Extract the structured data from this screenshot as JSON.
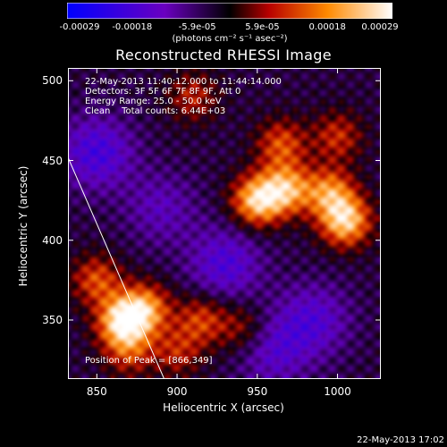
{
  "colorbar": {
    "ticks": [
      "-0.00029",
      "-0.00018",
      "-5.9e-05",
      "5.9e-05",
      "0.00018",
      "0.00029"
    ],
    "unit": "(photons cm⁻² s⁻¹ asec⁻²)",
    "colors": [
      "#0000ff",
      "#6a00c0",
      "#000000",
      "#b80000",
      "#ff8a00",
      "#ffffff"
    ]
  },
  "header": {
    "title": "Reconstructed RHESSI Image",
    "info_lines": [
      "22-May-2013 11:40:12.000 to 11:44:14.000",
      "Detectors: 3F 5F 6F 7F 8F 9F, Att 0",
      "Energy Range: 25.0 - 50.0 keV",
      "Clean    Total counts: 6.44E+03"
    ],
    "peak_label": "Position of Peak = [866,349]",
    "timestamp": "22-May-2013 17:02"
  },
  "chart_data": {
    "type": "heatmap",
    "title": "Reconstructed RHESSI Image",
    "xlabel": "Heliocentric X (arcsec)",
    "ylabel": "Heliocentric Y (arcsec)",
    "xlim": [
      832,
      1027
    ],
    "ylim": [
      313,
      508
    ],
    "xticks": [
      850,
      900,
      950,
      1000
    ],
    "yticks": [
      350,
      400,
      450,
      500
    ],
    "peak": [
      866,
      349
    ],
    "limb_line": [
      [
        832,
        452
      ],
      [
        892,
        313
      ]
    ],
    "sources": [
      {
        "x": 866,
        "y": 349,
        "amp": 1.0
      },
      {
        "x": 880,
        "y": 357,
        "amp": 0.75
      },
      {
        "x": 950,
        "y": 425,
        "amp": 0.95
      },
      {
        "x": 968,
        "y": 432,
        "amp": 0.8
      },
      {
        "x": 1005,
        "y": 412,
        "amp": 0.95
      },
      {
        "x": 995,
        "y": 430,
        "amp": 0.7
      },
      {
        "x": 965,
        "y": 460,
        "amp": 0.55
      },
      {
        "x": 1000,
        "y": 465,
        "amp": 0.45
      },
      {
        "x": 910,
        "y": 490,
        "amp": 0.4
      },
      {
        "x": 850,
        "y": 375,
        "amp": 0.55
      },
      {
        "x": 915,
        "y": 350,
        "amp": 0.5
      },
      {
        "x": 940,
        "y": 345,
        "amp": 0.35
      },
      {
        "x": 870,
        "y": 330,
        "amp": 0.45
      },
      {
        "x": 900,
        "y": 330,
        "amp": 0.4
      }
    ],
    "negative_regions": [
      {
        "x": 850,
        "y": 455,
        "amp": 0.5
      },
      {
        "x": 930,
        "y": 385,
        "amp": 0.45
      },
      {
        "x": 985,
        "y": 350,
        "amp": 0.4
      },
      {
        "x": 960,
        "y": 330,
        "amp": 0.35
      },
      {
        "x": 890,
        "y": 420,
        "amp": 0.3
      }
    ]
  }
}
